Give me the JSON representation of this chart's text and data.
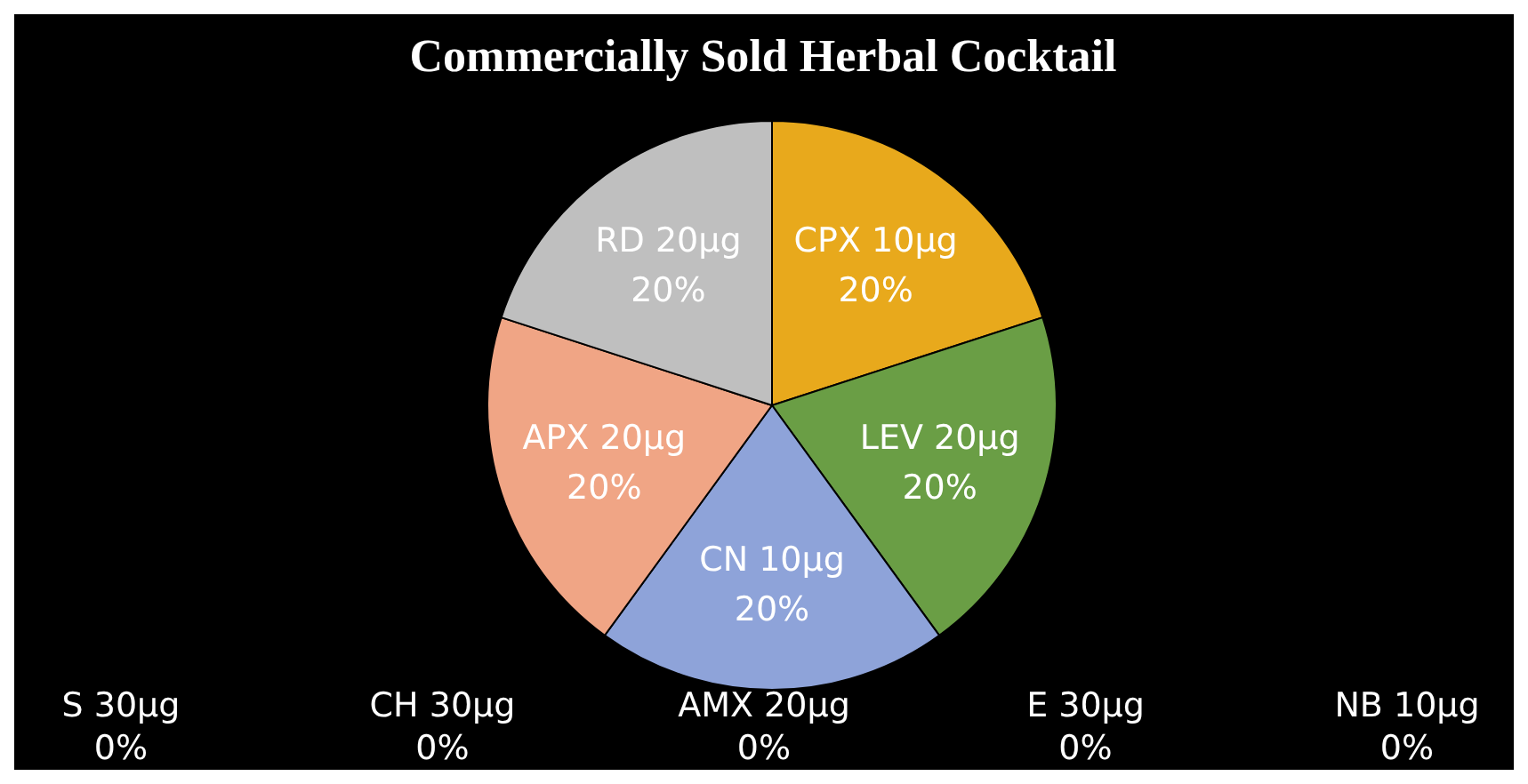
{
  "chart_data": {
    "type": "pie",
    "title": "Commercially Sold Herbal Cocktail",
    "categories": [
      "CPX 10µg",
      "LEV 20µg",
      "NB 10µg",
      "E 30µg",
      "AMX 20µg",
      "CN 10µg",
      "CH 30µg",
      "S 30µg",
      "APX 20µg",
      "RD 20µg"
    ],
    "values": [
      20,
      20,
      0,
      0,
      0,
      20,
      0,
      0,
      20,
      20
    ],
    "value_labels": [
      "20%",
      "20%",
      "0%",
      "0%",
      "0%",
      "20%",
      "0%",
      "0%",
      "20%",
      "20%"
    ],
    "colors": [
      "#e8a91c",
      "#6a9e45",
      "#3e6a2a",
      "#5a7ac0",
      "#4a5b8a",
      "#8ea3d9",
      "#d9845e",
      "#c96f4a",
      "#f0a585",
      "#bfbfbf"
    ],
    "legend": false
  }
}
